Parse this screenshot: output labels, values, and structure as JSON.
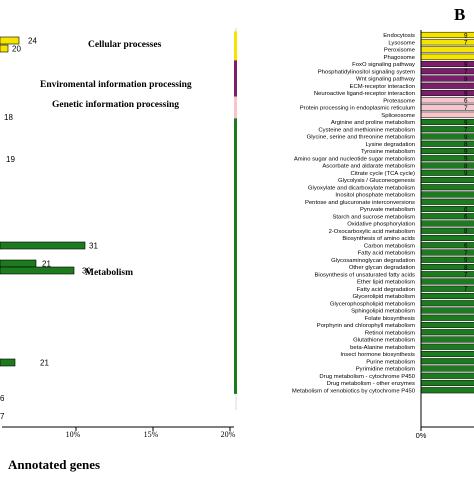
{
  "chart_data": [
    {
      "type": "bar",
      "panel": "A (partial)",
      "xlabel": "Annotated genes",
      "x_ticks": [
        "10%",
        "15%",
        "20%"
      ],
      "category_groups": [
        {
          "name": "Cellular processes",
          "color": "#f5e400"
        },
        {
          "name": "Enviromental information processing",
          "color": "#7b1f6a"
        },
        {
          "name": "Genetic information processing",
          "color": "#f7c6cc"
        },
        {
          "name": "Metabolism",
          "color": "#1e7a1e"
        }
      ],
      "visible_bar_labels": [
        "24",
        "20",
        "18",
        "19",
        "31",
        "21",
        "30",
        "21",
        "6",
        "7"
      ]
    },
    {
      "type": "bar",
      "panel": "B",
      "panel_label": "B",
      "orientation": "horizontal",
      "x_ticks": [
        "0%"
      ],
      "series": [
        {
          "name": "Cellular processes",
          "color": "#f5e400",
          "categories": [
            "Endocytosis",
            "Lysosome",
            "Peroxisome",
            "Phagosome"
          ]
        },
        {
          "name": "Enviromental information processing",
          "color": "#7b1f6a",
          "categories": [
            "FoxO signaling pathway",
            "Phosphatidylinositol signaling system",
            "Wnt signaling pathway",
            "ECM-receptor interaction",
            "Neuroactive ligand-receptor interaction"
          ]
        },
        {
          "name": "Genetic information processing",
          "color": "#f7c6cc",
          "categories": [
            "Proteasome",
            "Protein processing in endoplasmic reticulum",
            "Spliceosome"
          ]
        },
        {
          "name": "Metabolism",
          "color": "#1e7a1e",
          "categories": [
            "Arginine and proline metabolism",
            "Cysteine and methionine metabolism",
            "Glycine, serine and threonine metabolism",
            "Lysine degradation",
            "Tyrosine metabolism",
            "Amino sugar and nucleotide sugar metabolism",
            "Ascorbate and aldarate metabolism",
            "Citrate cycle (TCA cycle)",
            "Glycolysis / Gluconeogenesis",
            "Glyoxylate and dicarboxylate metabolism",
            "Inositol phosphate metabolism",
            "Pentose and glucuronate interconversions",
            "Pyruvate metabolism",
            "Starch and sucrose metabolism",
            "Oxidative phosphorylation",
            "2-Oxocarboxylic acid metabolism",
            "Biosynthesis of amino acids",
            "Carbon metabolism",
            "Fatty acid metabolism",
            "Glycosaminoglycan degradation",
            "Other glycan degradation",
            "Biosynthesis of unsaturated fatty acids",
            "Ether lipid metabolism",
            "Fatty acid degradation",
            "Glycerolipid metabolism",
            "Glycerophospholipid metabolism",
            "Sphingolipid metabolism",
            "Folate biosynthesis",
            "Porphyrin and chlorophyll metabolism",
            "Retinol metabolism",
            "Glutathione metabolism",
            "beta-Alanine metabolism",
            "Insect hormone biosynthesis",
            "Purine metabolism",
            "Pyrimidine metabolism",
            "Drug metabolism - cytochrome P450",
            "Drug metabolism - other enzymes",
            "Metabolism of xenobiotics by cytochrome P450"
          ]
        }
      ],
      "visible_bar_labels": [
        "9",
        "7",
        "9",
        "9",
        "6",
        "7",
        "9",
        "7",
        "9",
        "8",
        "9",
        "9",
        "8",
        "9",
        "6",
        "6",
        "8",
        "6",
        "7",
        "9",
        "8",
        "7",
        "7"
      ]
    }
  ]
}
